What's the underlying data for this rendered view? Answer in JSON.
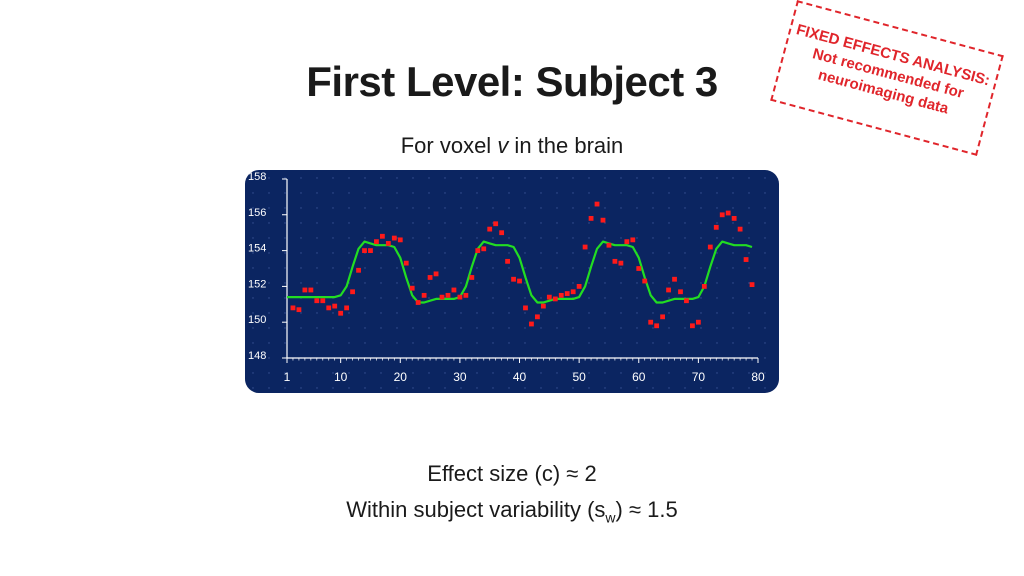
{
  "title": "First Level: Subject 3",
  "subtitle": {
    "prefix": "For voxel ",
    "variable": "v",
    "suffix": " in the brain"
  },
  "stamp": {
    "line1": "FIXED EFFECTS ANALYSIS:",
    "line2": "Not recommended for",
    "line3": "neuroimaging data"
  },
  "stats": {
    "effect_size": "Effect size (c) ≈ 2",
    "variability_prefix": "Within subject variability (s",
    "variability_sub": "w",
    "variability_suffix": ") ≈ 1.5"
  },
  "colors": {
    "background": "#0b2561",
    "model_line": "#22dd22",
    "points": "#ff1a1a",
    "axis": "#ffffff"
  },
  "chart_data": {
    "type": "scatter",
    "xlim": [
      1,
      80
    ],
    "ylim": [
      148,
      158
    ],
    "xticks": [
      1,
      10,
      20,
      30,
      40,
      50,
      60,
      70,
      80
    ],
    "yticks": [
      148,
      150,
      152,
      154,
      156,
      158
    ],
    "grid": false,
    "series": [
      {
        "kind": "scatter",
        "x": [
          2,
          3,
          4,
          5,
          6,
          7,
          8,
          9,
          10,
          11,
          12,
          13,
          14,
          15,
          16,
          17,
          18,
          19,
          20,
          21,
          22,
          23,
          24,
          25,
          26,
          27,
          28,
          29,
          30,
          31,
          32,
          33,
          34,
          35,
          36,
          37,
          38,
          39,
          40,
          41,
          42,
          43,
          44,
          45,
          46,
          47,
          48,
          49,
          50,
          51,
          52,
          53,
          54,
          55,
          56,
          57,
          58,
          59,
          60,
          61,
          62,
          63,
          64,
          65,
          66,
          67,
          68,
          69,
          70,
          71,
          72,
          73,
          74,
          75,
          76,
          77,
          78,
          79
        ],
        "y": [
          150.8,
          150.7,
          151.8,
          151.8,
          151.2,
          151.2,
          150.8,
          150.9,
          150.5,
          150.8,
          151.7,
          152.9,
          154.0,
          154.0,
          154.5,
          154.8,
          154.4,
          154.7,
          154.6,
          153.3,
          151.9,
          151.1,
          151.5,
          152.5,
          152.7,
          151.4,
          151.5,
          151.8,
          151.4,
          151.5,
          152.5,
          154.0,
          154.1,
          155.2,
          155.5,
          155.0,
          153.4,
          152.4,
          152.3,
          150.8,
          149.9,
          150.3,
          150.9,
          151.4,
          151.3,
          151.5,
          151.6,
          151.7,
          152.0,
          154.2,
          155.8,
          156.6,
          155.7,
          154.3,
          153.4,
          153.3,
          154.5,
          154.6,
          153.0,
          152.3,
          150.0,
          149.8,
          150.3,
          151.8,
          152.4,
          151.7,
          151.2,
          149.8,
          150.0,
          152.0,
          154.2,
          155.3,
          156.0,
          156.1,
          155.8,
          155.2,
          153.5,
          152.1
        ]
      },
      {
        "kind": "line",
        "x": [
          1,
          2,
          3,
          4,
          5,
          6,
          7,
          8,
          9,
          10,
          11,
          12,
          13,
          14,
          15,
          16,
          17,
          18,
          19,
          20,
          21,
          22,
          23,
          24,
          25,
          26,
          27,
          28,
          29,
          30,
          31,
          32,
          33,
          34,
          35,
          36,
          37,
          38,
          39,
          40,
          41,
          42,
          43,
          44,
          45,
          46,
          47,
          48,
          49,
          50,
          51,
          52,
          53,
          54,
          55,
          56,
          57,
          58,
          59,
          60,
          61,
          62,
          63,
          64,
          65,
          66,
          67,
          68,
          69,
          70,
          71,
          72,
          73,
          74,
          75,
          76,
          77,
          78,
          79
        ],
        "y": [
          151.4,
          151.4,
          151.4,
          151.4,
          151.4,
          151.4,
          151.4,
          151.4,
          151.4,
          151.5,
          152.0,
          153.1,
          154.1,
          154.5,
          154.4,
          154.3,
          154.3,
          154.3,
          154.2,
          153.6,
          152.5,
          151.5,
          151.1,
          151.1,
          151.2,
          151.3,
          151.3,
          151.3,
          151.3,
          151.4,
          152.0,
          153.1,
          154.1,
          154.5,
          154.4,
          154.3,
          154.3,
          154.3,
          154.2,
          153.6,
          152.5,
          151.5,
          151.1,
          151.1,
          151.2,
          151.3,
          151.3,
          151.3,
          151.3,
          151.4,
          152.0,
          153.1,
          154.1,
          154.5,
          154.4,
          154.3,
          154.3,
          154.3,
          154.2,
          153.6,
          152.5,
          151.5,
          151.1,
          151.1,
          151.2,
          151.3,
          151.3,
          151.3,
          151.3,
          151.4,
          152.0,
          153.1,
          154.1,
          154.5,
          154.4,
          154.3,
          154.3,
          154.3,
          154.2
        ]
      }
    ]
  }
}
